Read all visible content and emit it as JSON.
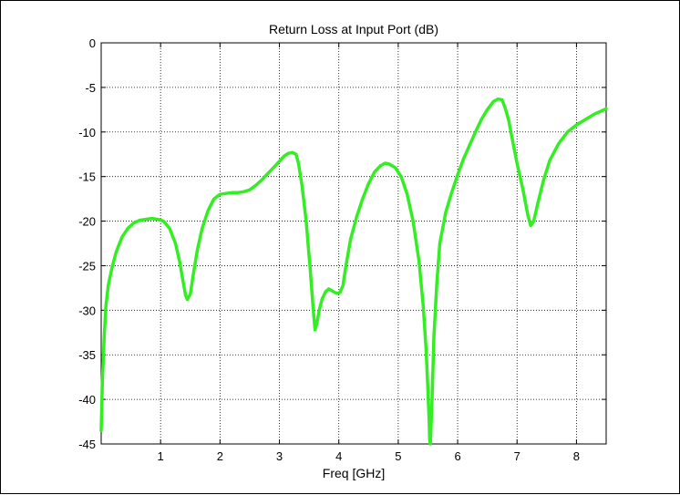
{
  "chart_data": {
    "type": "line",
    "title": "Return Loss at Input Port (dB)",
    "xlabel": "Freq [GHz]",
    "ylabel": "",
    "xlim": [
      0,
      8.5
    ],
    "ylim": [
      -45,
      0
    ],
    "xticks": [
      1,
      2,
      3,
      4,
      5,
      6,
      7,
      8
    ],
    "yticks": [
      0,
      -5,
      -10,
      -15,
      -20,
      -25,
      -30,
      -35,
      -40,
      -45
    ],
    "grid": true,
    "colors": {
      "line": "#33ee22",
      "grid": "#000000",
      "axes": "#000000"
    },
    "series": [
      {
        "x": [
          0.0,
          0.02,
          0.05,
          0.08,
          0.12,
          0.18,
          0.25,
          0.35,
          0.45,
          0.55,
          0.65,
          0.75,
          0.85,
          0.95,
          1.05,
          1.15,
          1.25,
          1.32,
          1.38,
          1.42,
          1.45,
          1.5,
          1.55,
          1.62,
          1.7,
          1.8,
          1.9,
          2.0,
          2.1,
          2.2,
          2.3,
          2.4,
          2.5,
          2.6,
          2.7,
          2.8,
          2.9,
          3.0,
          3.08,
          3.15,
          3.22,
          3.28,
          3.32,
          3.38,
          3.45,
          3.52,
          3.57,
          3.6,
          3.63,
          3.67,
          3.72,
          3.78,
          3.83,
          3.88,
          3.93,
          3.98,
          4.02,
          4.07,
          4.12,
          4.2,
          4.3,
          4.4,
          4.5,
          4.6,
          4.7,
          4.78,
          4.85,
          4.95,
          5.05,
          5.15,
          5.25,
          5.35,
          5.42,
          5.47,
          5.5,
          5.52,
          5.53,
          5.54,
          5.55,
          5.57,
          5.6,
          5.65,
          5.7,
          5.8,
          5.9,
          6.0,
          6.1,
          6.2,
          6.3,
          6.4,
          6.5,
          6.6,
          6.68,
          6.75,
          6.8,
          6.86,
          6.92,
          7.0,
          7.1,
          7.18,
          7.23,
          7.28,
          7.35,
          7.45,
          7.55,
          7.7,
          7.85,
          8.0,
          8.15,
          8.3,
          8.5
        ],
        "y": [
          -43.5,
          -38.0,
          -33.0,
          -29.5,
          -27.2,
          -25.3,
          -23.5,
          -21.8,
          -20.8,
          -20.2,
          -19.9,
          -19.8,
          -19.7,
          -19.8,
          -20.0,
          -20.8,
          -22.5,
          -24.5,
          -26.8,
          -28.3,
          -28.8,
          -28.2,
          -26.0,
          -23.2,
          -20.8,
          -18.8,
          -17.5,
          -17.0,
          -16.9,
          -16.8,
          -16.8,
          -16.7,
          -16.5,
          -16.0,
          -15.4,
          -14.7,
          -14.0,
          -13.3,
          -12.7,
          -12.4,
          -12.3,
          -12.5,
          -13.5,
          -16.0,
          -20.0,
          -25.5,
          -30.0,
          -32.2,
          -31.5,
          -30.0,
          -28.7,
          -27.9,
          -27.6,
          -27.8,
          -28.0,
          -28.1,
          -28.0,
          -27.2,
          -25.0,
          -22.0,
          -19.5,
          -17.5,
          -15.8,
          -14.5,
          -13.8,
          -13.5,
          -13.6,
          -14.0,
          -15.0,
          -17.0,
          -20.0,
          -24.5,
          -29.5,
          -34.5,
          -39.0,
          -42.5,
          -44.5,
          -45.0,
          -43.5,
          -40.0,
          -33.0,
          -27.0,
          -22.5,
          -19.0,
          -16.8,
          -14.8,
          -13.0,
          -11.5,
          -10.0,
          -8.6,
          -7.5,
          -6.6,
          -6.3,
          -6.4,
          -7.3,
          -8.7,
          -10.8,
          -13.5,
          -16.5,
          -19.3,
          -20.5,
          -20.0,
          -18.0,
          -15.3,
          -13.2,
          -11.3,
          -10.0,
          -9.2,
          -8.6,
          -8.0,
          -7.4
        ]
      }
    ]
  }
}
